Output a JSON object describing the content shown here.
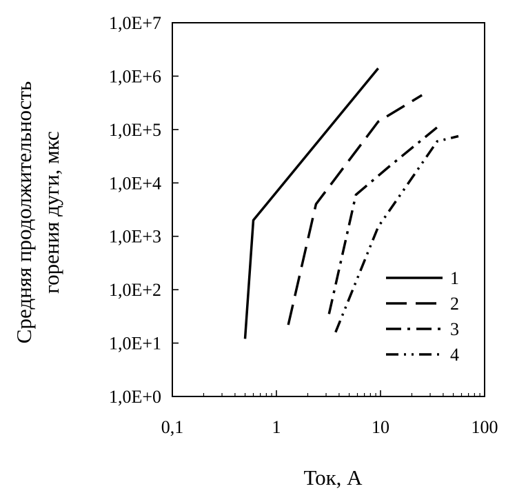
{
  "chart_data": {
    "type": "line",
    "xlabel": "Ток, А",
    "ylabel_lines": [
      "Средняя продолжительность",
      "горения дуги, мкс"
    ],
    "x_scale": "log",
    "y_scale": "log",
    "xlim": [
      0.1,
      100
    ],
    "ylim": [
      1,
      10000000
    ],
    "x_ticks": [
      0.1,
      1,
      10,
      100
    ],
    "x_tick_labels": [
      "0,1",
      "1",
      "10",
      "100"
    ],
    "y_ticks": [
      1,
      10,
      100,
      1000,
      10000,
      100000,
      1000000,
      10000000
    ],
    "y_tick_labels": [
      "1,0E+0",
      "1,0E+1",
      "1,0E+2",
      "1,0E+3",
      "1,0E+4",
      "1,0E+5",
      "1,0E+6",
      "1,0E+7"
    ],
    "legend_position": "bottom-right",
    "series": [
      {
        "name": "1",
        "dash": "solid",
        "points": [
          [
            0.5,
            12
          ],
          [
            0.6,
            2000
          ],
          [
            9.5,
            1400000
          ]
        ]
      },
      {
        "name": "2",
        "dash": "long-dash",
        "points": [
          [
            1.3,
            22
          ],
          [
            2.4,
            4000
          ],
          [
            9.5,
            140000
          ],
          [
            25,
            440000
          ]
        ]
      },
      {
        "name": "3",
        "dash": "dash-dot",
        "points": [
          [
            3.2,
            35
          ],
          [
            5.8,
            6000
          ],
          [
            12,
            20000
          ],
          [
            37,
            120000
          ]
        ]
      },
      {
        "name": "4",
        "dash": "dash-dot-dot",
        "points": [
          [
            3.7,
            16
          ],
          [
            9.5,
            1500
          ],
          [
            35,
            60000
          ],
          [
            56,
            75000
          ]
        ]
      }
    ]
  }
}
